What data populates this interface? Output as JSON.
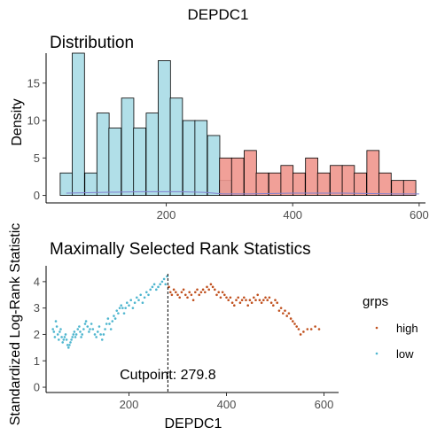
{
  "title": "DEPDC1",
  "colors": {
    "low": "#4fb6cf",
    "high": "#c0511f",
    "low_fill": "#a8dbe6",
    "high_fill": "#f0968d",
    "bar_stroke": "#000000"
  },
  "chart_data": [
    {
      "type": "bar",
      "title": "Distribution",
      "xlabel": "",
      "ylabel": "Density",
      "xlim": [
        10,
        610
      ],
      "ylim": [
        -1,
        19
      ],
      "x_ticks": [
        200,
        400,
        600
      ],
      "y_ticks": [
        0,
        5,
        10,
        15
      ],
      "bin_width": 19.4,
      "series": [
        {
          "name": "low",
          "bins": [
            {
              "x": 42,
              "y": 3
            },
            {
              "x": 61,
              "y": 19
            },
            {
              "x": 81,
              "y": 3
            },
            {
              "x": 100,
              "y": 11
            },
            {
              "x": 119,
              "y": 9
            },
            {
              "x": 139,
              "y": 13
            },
            {
              "x": 158,
              "y": 9
            },
            {
              "x": 178,
              "y": 11
            },
            {
              "x": 197,
              "y": 18
            },
            {
              "x": 216,
              "y": 13
            },
            {
              "x": 236,
              "y": 10
            },
            {
              "x": 255,
              "y": 10
            },
            {
              "x": 275,
              "y": 8
            },
            {
              "x": 294,
              "y": 2
            }
          ]
        },
        {
          "name": "high",
          "bins": [
            {
              "x": 294,
              "y": 5
            },
            {
              "x": 313,
              "y": 5
            },
            {
              "x": 333,
              "y": 6
            },
            {
              "x": 352,
              "y": 3
            },
            {
              "x": 372,
              "y": 3
            },
            {
              "x": 391,
              "y": 4
            },
            {
              "x": 410,
              "y": 3
            },
            {
              "x": 430,
              "y": 5
            },
            {
              "x": 449,
              "y": 3
            },
            {
              "x": 469,
              "y": 4
            },
            {
              "x": 488,
              "y": 4
            },
            {
              "x": 507,
              "y": 3
            },
            {
              "x": 527,
              "y": 6
            },
            {
              "x": 546,
              "y": 3
            },
            {
              "x": 566,
              "y": 2
            },
            {
              "x": 585,
              "y": 2
            }
          ]
        }
      ],
      "density_line": [
        [
          42,
          0.3
        ],
        [
          100,
          0.4
        ],
        [
          160,
          0.5
        ],
        [
          220,
          0.5
        ],
        [
          260,
          0.4
        ],
        [
          290,
          0.2
        ],
        [
          330,
          0.2
        ],
        [
          400,
          0.3
        ],
        [
          480,
          0.3
        ],
        [
          560,
          0.2
        ],
        [
          600,
          0.2
        ]
      ]
    },
    {
      "type": "scatter",
      "title": "Maximally Selected Rank Statistics",
      "xlabel": "DEPDC1",
      "ylabel": "Standardized Log-Rank Statistic",
      "xlim": [
        30,
        630
      ],
      "ylim": [
        -0.2,
        4.6
      ],
      "x_ticks": [
        200,
        400,
        600
      ],
      "y_ticks": [
        0,
        1,
        2,
        3,
        4
      ],
      "cutpoint": 279.8,
      "cutpoint_label": "Cutpoint: 279.8",
      "legend": {
        "title": "grps",
        "placement": "right",
        "items": [
          "high",
          "low"
        ]
      },
      "series": [
        {
          "name": "low",
          "points": [
            [
              44,
              2.2
            ],
            [
              46,
              2.1
            ],
            [
              48,
              1.9
            ],
            [
              50,
              2.5
            ],
            [
              52,
              2.3
            ],
            [
              54,
              2.0
            ],
            [
              56,
              1.8
            ],
            [
              58,
              2.1
            ],
            [
              60,
              2.2
            ],
            [
              62,
              1.9
            ],
            [
              64,
              1.7
            ],
            [
              66,
              1.8
            ],
            [
              68,
              1.9
            ],
            [
              70,
              2.0
            ],
            [
              72,
              1.8
            ],
            [
              74,
              1.6
            ],
            [
              76,
              1.5
            ],
            [
              78,
              1.6
            ],
            [
              80,
              1.7
            ],
            [
              82,
              1.8
            ],
            [
              84,
              1.9
            ],
            [
              86,
              2.0
            ],
            [
              88,
              2.1
            ],
            [
              90,
              1.9
            ],
            [
              92,
              2.0
            ],
            [
              95,
              2.2
            ],
            [
              98,
              2.3
            ],
            [
              100,
              2.1
            ],
            [
              102,
              1.9
            ],
            [
              104,
              2.0
            ],
            [
              107,
              2.2
            ],
            [
              110,
              2.4
            ],
            [
              112,
              2.5
            ],
            [
              115,
              2.3
            ],
            [
              118,
              2.1
            ],
            [
              120,
              2.2
            ],
            [
              123,
              2.4
            ],
            [
              126,
              2.2
            ],
            [
              130,
              2.0
            ],
            [
              133,
              1.9
            ],
            [
              136,
              2.1
            ],
            [
              139,
              2.3
            ],
            [
              142,
              2.0
            ],
            [
              145,
              1.8
            ],
            [
              148,
              2.0
            ],
            [
              151,
              2.2
            ],
            [
              154,
              2.4
            ],
            [
              157,
              2.6
            ],
            [
              160,
              2.4
            ],
            [
              163,
              2.2
            ],
            [
              166,
              2.5
            ],
            [
              169,
              2.7
            ],
            [
              172,
              2.6
            ],
            [
              175,
              2.9
            ],
            [
              178,
              2.8
            ],
            [
              181,
              3.0
            ],
            [
              184,
              3.1
            ],
            [
              187,
              3.0
            ],
            [
              190,
              2.8
            ],
            [
              193,
              3.0
            ],
            [
              196,
              3.2
            ],
            [
              200,
              3.1
            ],
            [
              204,
              3.3
            ],
            [
              208,
              3.0
            ],
            [
              212,
              3.2
            ],
            [
              216,
              3.4
            ],
            [
              220,
              3.3
            ],
            [
              224,
              3.5
            ],
            [
              228,
              3.2
            ],
            [
              232,
              3.4
            ],
            [
              236,
              3.6
            ],
            [
              240,
              3.5
            ],
            [
              244,
              3.7
            ],
            [
              248,
              3.8
            ],
            [
              252,
              3.9
            ],
            [
              256,
              3.7
            ],
            [
              260,
              3.8
            ],
            [
              264,
              3.9
            ],
            [
              268,
              4.0
            ],
            [
              272,
              4.1
            ],
            [
              275,
              3.9
            ],
            [
              278,
              4.2
            ]
          ]
        },
        {
          "name": "high",
          "points": [
            [
              282,
              3.8
            ],
            [
              285,
              3.6
            ],
            [
              288,
              3.5
            ],
            [
              292,
              3.7
            ],
            [
              296,
              3.6
            ],
            [
              300,
              3.5
            ],
            [
              304,
              3.4
            ],
            [
              308,
              3.6
            ],
            [
              312,
              3.7
            ],
            [
              316,
              3.5
            ],
            [
              320,
              3.4
            ],
            [
              324,
              3.6
            ],
            [
              328,
              3.5
            ],
            [
              332,
              3.3
            ],
            [
              336,
              3.6
            ],
            [
              340,
              3.7
            ],
            [
              344,
              3.5
            ],
            [
              348,
              3.6
            ],
            [
              352,
              3.7
            ],
            [
              356,
              3.6
            ],
            [
              360,
              3.8
            ],
            [
              364,
              3.7
            ],
            [
              368,
              3.9
            ],
            [
              372,
              3.8
            ],
            [
              376,
              3.7
            ],
            [
              380,
              3.5
            ],
            [
              384,
              3.6
            ],
            [
              388,
              3.4
            ],
            [
              392,
              3.6
            ],
            [
              396,
              3.5
            ],
            [
              400,
              3.4
            ],
            [
              404,
              3.3
            ],
            [
              408,
              3.4
            ],
            [
              412,
              3.2
            ],
            [
              416,
              3.1
            ],
            [
              420,
              3.3
            ],
            [
              424,
              3.4
            ],
            [
              428,
              3.2
            ],
            [
              432,
              3.3
            ],
            [
              436,
              3.4
            ],
            [
              440,
              3.3
            ],
            [
              444,
              3.1
            ],
            [
              448,
              3.3
            ],
            [
              452,
              3.2
            ],
            [
              456,
              3.4
            ],
            [
              460,
              3.3
            ],
            [
              464,
              3.5
            ],
            [
              468,
              3.3
            ],
            [
              472,
              3.2
            ],
            [
              476,
              3.3
            ],
            [
              480,
              3.4
            ],
            [
              484,
              3.3
            ],
            [
              488,
              3.4
            ],
            [
              492,
              3.2
            ],
            [
              496,
              3.1
            ],
            [
              500,
              3.3
            ],
            [
              504,
              3.2
            ],
            [
              508,
              2.9
            ],
            [
              512,
              3.0
            ],
            [
              516,
              2.8
            ],
            [
              520,
              2.9
            ],
            [
              524,
              2.7
            ],
            [
              528,
              2.8
            ],
            [
              532,
              2.6
            ],
            [
              536,
              2.5
            ],
            [
              540,
              2.4
            ],
            [
              544,
              2.3
            ],
            [
              548,
              2.2
            ],
            [
              552,
              2.0
            ],
            [
              558,
              2.1
            ],
            [
              566,
              2.2
            ],
            [
              574,
              2.2
            ],
            [
              582,
              2.3
            ],
            [
              590,
              2.2
            ]
          ]
        }
      ]
    }
  ]
}
